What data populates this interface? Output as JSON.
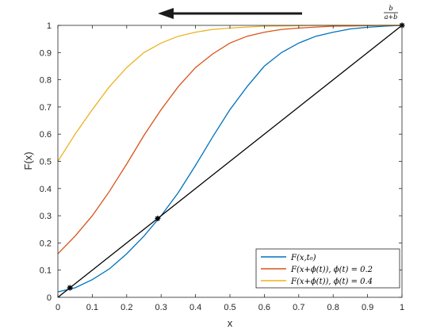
{
  "chart_data": {
    "type": "line",
    "title": "",
    "xlabel": "x",
    "ylabel": "F(x)",
    "xlim": [
      0,
      1
    ],
    "ylim": [
      0,
      1
    ],
    "grid": false,
    "legend_position": "bottom-right",
    "x_ticks": [
      "0",
      "0.1",
      "0.2",
      "0.3",
      "0.4",
      "0.5",
      "0.6",
      "0.7",
      "0.8",
      "0.9",
      "1"
    ],
    "y_ticks": [
      "0",
      "0.1",
      "0.2",
      "0.3",
      "0.4",
      "0.5",
      "0.6",
      "0.7",
      "0.8",
      "0.9",
      "1"
    ],
    "top_annotation": {
      "numerator": "b",
      "denominator": "a+b"
    },
    "arrow_direction": "left",
    "series": [
      {
        "name": "F(x,t₀)",
        "color": "#0072BD",
        "x": [
          0,
          0.05,
          0.1,
          0.15,
          0.2,
          0.25,
          0.3,
          0.35,
          0.4,
          0.45,
          0.5,
          0.55,
          0.6,
          0.65,
          0.7,
          0.75,
          0.8,
          0.85,
          0.9,
          0.95,
          1
        ],
        "y": [
          0.02,
          0.035,
          0.065,
          0.105,
          0.16,
          0.225,
          0.3,
          0.385,
          0.485,
          0.59,
          0.69,
          0.775,
          0.85,
          0.9,
          0.935,
          0.96,
          0.975,
          0.987,
          0.993,
          0.997,
          1
        ]
      },
      {
        "name": "F(x+ϕ(t)),  ϕ(t) = 0.2",
        "color": "#D95319",
        "x": [
          0,
          0.05,
          0.1,
          0.15,
          0.2,
          0.25,
          0.3,
          0.35,
          0.4,
          0.45,
          0.5,
          0.55,
          0.6,
          0.65,
          0.7,
          0.75,
          0.8,
          0.85,
          0.9,
          0.95,
          1
        ],
        "y": [
          0.16,
          0.225,
          0.3,
          0.39,
          0.49,
          0.595,
          0.69,
          0.775,
          0.845,
          0.895,
          0.935,
          0.96,
          0.975,
          0.985,
          0.99,
          0.994,
          0.997,
          0.998,
          0.999,
          1,
          1
        ]
      },
      {
        "name": "F(x+ϕ(t)),  ϕ(t) = 0.4",
        "color": "#EDB120",
        "x": [
          0,
          0.05,
          0.1,
          0.15,
          0.2,
          0.25,
          0.3,
          0.35,
          0.4,
          0.45,
          0.5,
          0.55,
          0.6,
          0.65,
          0.7,
          0.75,
          0.8,
          0.85,
          0.9,
          0.95,
          1
        ],
        "y": [
          0.5,
          0.6,
          0.69,
          0.775,
          0.845,
          0.9,
          0.935,
          0.96,
          0.975,
          0.985,
          0.99,
          0.994,
          0.997,
          0.998,
          0.999,
          1,
          1,
          1,
          1,
          1,
          1
        ]
      },
      {
        "color": "#000000",
        "x": [
          0,
          1
        ],
        "y": [
          0,
          1
        ]
      }
    ],
    "markers": [
      {
        "x": 0.035,
        "y": 0.035
      },
      {
        "x": 0.29,
        "y": 0.29
      },
      {
        "x": 1,
        "y": 1
      }
    ]
  }
}
